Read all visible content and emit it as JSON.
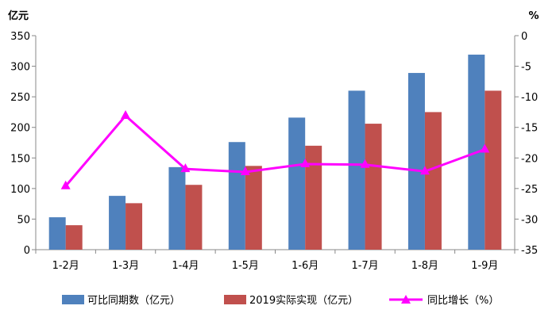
{
  "chart_data": {
    "type": "bar",
    "categories": [
      "1-2月",
      "1-3月",
      "1-4月",
      "1-5月",
      "1-6月",
      "1-7月",
      "1-8月",
      "1-9月"
    ],
    "series": [
      {
        "name": "可比同期数（亿元）",
        "type": "bar",
        "axis": "left",
        "color": "#4F81BD",
        "values": [
          53,
          88,
          135,
          176,
          216,
          260,
          289,
          319
        ]
      },
      {
        "name": "2019实际实现（亿元）",
        "type": "bar",
        "axis": "left",
        "color": "#C0504D",
        "values": [
          40,
          76,
          106,
          137,
          170,
          206,
          225,
          260
        ]
      },
      {
        "name": "同比增长（%）",
        "type": "line",
        "axis": "right",
        "color": "#FF00FF",
        "marker": "triangle",
        "values": [
          -24.6,
          -13.1,
          -21.8,
          -22.3,
          -21.0,
          -21.1,
          -22.2,
          -18.6
        ]
      }
    ],
    "y_left": {
      "unit_label": "亿元",
      "range": [
        0,
        350
      ],
      "ticks": [
        "350",
        "300",
        "250",
        "200",
        "150",
        "100",
        "50",
        "0"
      ]
    },
    "y_right": {
      "unit_label": "%",
      "range": [
        -35,
        0
      ],
      "ticks": [
        "0",
        "-5",
        "-10",
        "-15",
        "-20",
        "-25",
        "-30",
        "-35"
      ]
    },
    "grid": false,
    "legend_position": "bottom"
  }
}
